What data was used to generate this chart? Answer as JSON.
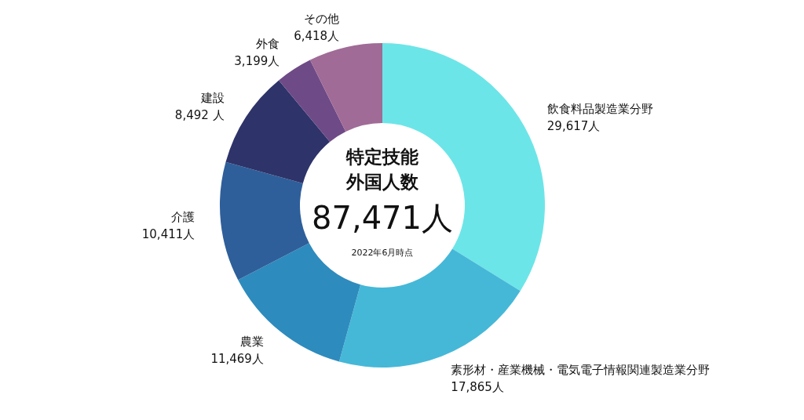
{
  "chart_data": {
    "type": "donut",
    "title": "特定技能外国人数",
    "subtitle": "87,471人",
    "annotations": [
      "2022年6月時点"
    ],
    "categories": [
      "飲食料品製造業分野",
      "素形材・産業機械・電気電子情報関連製造業分野",
      "農業",
      "介護",
      "建設",
      "外食",
      "その他"
    ],
    "values": [
      29617,
      17865,
      11469,
      10411,
      8492,
      3199,
      6418
    ],
    "value_labels": [
      "29,617人",
      "17,865人",
      "11,469人",
      "10,411人",
      "8,492 人",
      "3,199人",
      "6,418人"
    ],
    "colors": [
      "#6ce5e8",
      "#45b8d8",
      "#2e8bbd",
      "#2e5f9a",
      "#2e3369",
      "#6e4a87",
      "#a06b96"
    ]
  }
}
